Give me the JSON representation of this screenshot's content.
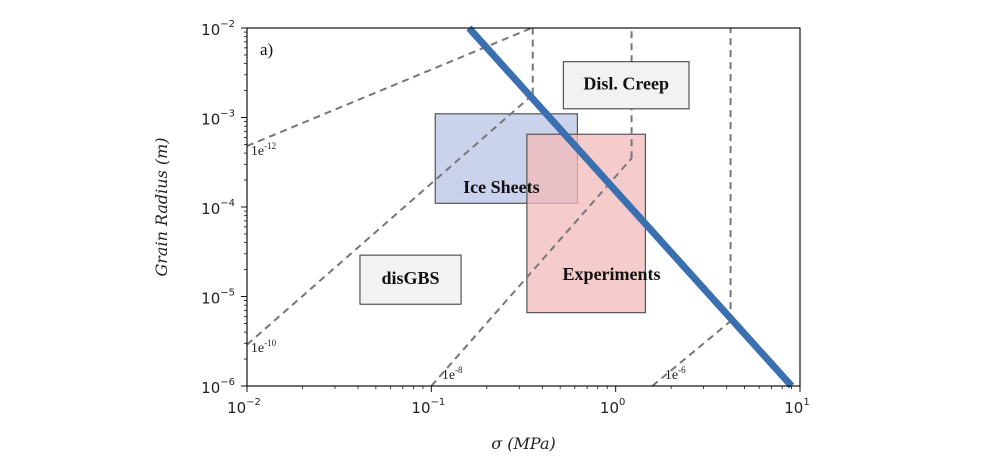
{
  "chart_data": {
    "type": "line",
    "panel_label": "a)",
    "xlabel": "σ (MPa)",
    "ylabel": "Grain Radius (m)",
    "xscale": "log",
    "yscale": "log",
    "xlim": [
      0.01,
      10
    ],
    "ylim": [
      1e-06,
      0.01
    ],
    "x_ticks": [
      {
        "value": 0.01,
        "base": "10",
        "exp": "−2"
      },
      {
        "value": 0.1,
        "base": "10",
        "exp": "−1"
      },
      {
        "value": 1,
        "base": "10",
        "exp": "0"
      },
      {
        "value": 10,
        "base": "10",
        "exp": "1"
      }
    ],
    "y_ticks": [
      {
        "value": 1e-06,
        "base": "10",
        "exp": "−6"
      },
      {
        "value": 1e-05,
        "base": "10",
        "exp": "−5"
      },
      {
        "value": 0.0001,
        "base": "10",
        "exp": "−4"
      },
      {
        "value": 0.001,
        "base": "10",
        "exp": "−3"
      },
      {
        "value": 0.01,
        "base": "10",
        "exp": "−2"
      }
    ],
    "boundary": {
      "color": "#3a6fb0",
      "points": [
        [
          0.16,
          0.01
        ],
        [
          9.0,
          1e-06
        ]
      ]
    },
    "iso_strain_rate_contours": [
      {
        "base": "1e",
        "exp": "-12",
        "label_at": [
          0.0105,
          0.00038
        ],
        "diagonal": [
          [
            0.01,
            0.00048
          ],
          [
            0.35,
            0.01
          ]
        ],
        "vertical_x": 0.35
      },
      {
        "base": "1e",
        "exp": "-10",
        "label_at": [
          0.0105,
          2.4e-06
        ],
        "diagonal": [
          [
            0.01,
            2.9e-06
          ],
          [
            0.355,
            0.0018
          ]
        ],
        "vertical_x": 0.355
      },
      {
        "base": "1e",
        "exp": "-8",
        "label_at": [
          0.114,
          1.2e-06
        ],
        "diagonal": [
          [
            0.1,
            1e-06
          ],
          [
            1.22,
            0.00035
          ]
        ],
        "vertical_x": 1.22
      },
      {
        "base": "1e",
        "exp": "-6",
        "label_at": [
          1.85,
          1.2e-06
        ],
        "diagonal": [
          [
            1.58,
            1e-06
          ],
          [
            4.2,
            5.3e-06
          ]
        ],
        "vertical_x": 4.2
      }
    ],
    "regions": [
      {
        "label": "Ice Sheets",
        "x": [
          0.105,
          0.62
        ],
        "y": [
          0.00011,
          0.0011
        ],
        "fill": "#b9c3e6",
        "label_at": [
          0.24,
          0.00016
        ]
      },
      {
        "label": "Experiments",
        "x": [
          0.33,
          1.45
        ],
        "y": [
          6.6e-06,
          0.00065
        ],
        "fill": "#f3b9b9",
        "label_at": [
          0.95,
          1.7e-05
        ]
      }
    ],
    "regime_labels": [
      {
        "label": "Disl. Creep",
        "x": [
          0.52,
          2.5
        ],
        "y": [
          0.00125,
          0.0042
        ]
      },
      {
        "label": "disGBS",
        "x": [
          0.041,
          0.145
        ],
        "y": [
          8.2e-06,
          2.9e-05
        ]
      }
    ]
  }
}
